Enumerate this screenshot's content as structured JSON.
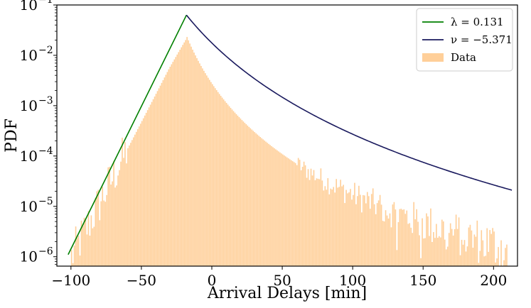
{
  "chart_data": {
    "type": "bar",
    "title": "",
    "xlabel": "Arrival Delays [min]",
    "ylabel": "PDF",
    "yscale": "log",
    "xlim": [
      -110,
      217
    ],
    "ylim": [
      6.5e-07,
      0.1
    ],
    "x_ticks": [
      -100,
      -50,
      0,
      50,
      100,
      150,
      200
    ],
    "x_tick_labels": [
      "−100",
      "−50",
      "0",
      "50",
      "100",
      "150",
      "200"
    ],
    "y_ticks": [
      1e-06,
      1e-05,
      0.0001,
      0.001,
      0.01,
      0.1
    ],
    "y_tick_labels": [
      {
        "base": "10",
        "exp": "−6"
      },
      {
        "base": "10",
        "exp": "−5"
      },
      {
        "base": "10",
        "exp": "−4"
      },
      {
        "base": "10",
        "exp": "−3"
      },
      {
        "base": "10",
        "exp": "−2"
      },
      {
        "base": "10",
        "exp": "−1"
      }
    ],
    "grid": false,
    "legend_position": "top-right",
    "legend": [
      {
        "label": "λ = 0.131",
        "color": "#008000",
        "kind": "line"
      },
      {
        "label": "ν = −5.371",
        "color": "#1a1a5e",
        "kind": "line"
      },
      {
        "label": "Data",
        "color": "#ffcf99",
        "kind": "patch"
      }
    ],
    "histogram": {
      "name": "Data",
      "color": "#ffcf99",
      "bin_width": 1,
      "range": [
        -100,
        210
      ],
      "peak_x": -18,
      "peak_density": 0.025,
      "rising_rate": 0.131,
      "falling_exponent": -5.371,
      "noise_threshold_x": 60,
      "noise_amplitude": 0.18
    },
    "series": [
      {
        "name": "λ = 0.131",
        "color": "#008000",
        "x": [
          -102,
          -18
        ],
        "y": [
          1.1e-06,
          0.063
        ]
      },
      {
        "name": "ν = −5.371",
        "color": "#1a1a5e",
        "x": [
          -18,
          213
        ],
        "y": [
          0.063,
          2.1e-05
        ]
      }
    ],
    "peak_x": -18,
    "peak_y": 0.063
  }
}
